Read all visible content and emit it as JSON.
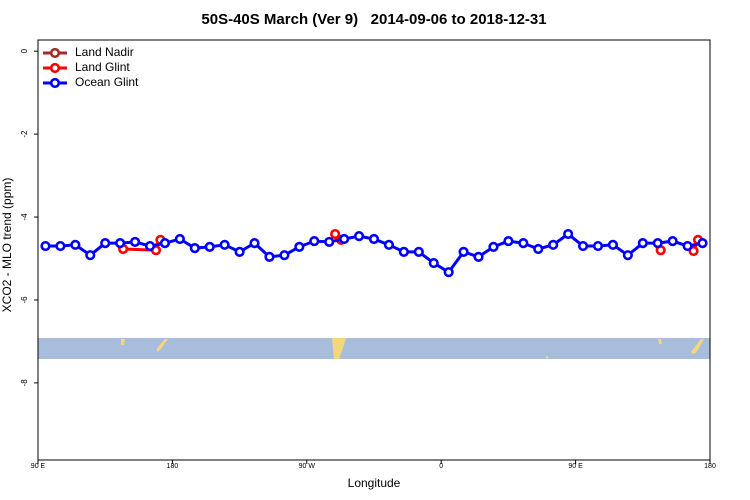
{
  "chart_data": {
    "type": "line",
    "title": "50S-40S March (Ver 9)   2014-09-06 to 2018-12-31",
    "x_label": "Longitude",
    "y_label": "XCO2 - MLO trend (ppm)",
    "xlim": [
      90,
      540
    ],
    "ylim": [
      -9.86,
      0.27
    ],
    "xticks": [
      {
        "value": 90,
        "label": "90 E"
      },
      {
        "value": 180,
        "label": "180"
      },
      {
        "value": 270,
        "label": "90 W"
      },
      {
        "value": 360,
        "label": "0"
      },
      {
        "value": 450,
        "label": "90 E"
      },
      {
        "value": 540,
        "label": "180"
      }
    ],
    "yticks": [
      0,
      -2,
      -4,
      -6,
      -8
    ],
    "legend": "top-left",
    "series": [
      {
        "name": "Land Nadir",
        "color": "#a52a2a",
        "x": [],
        "values": []
      },
      {
        "name": "Land Glint",
        "color": "#ff0000",
        "x": [
          147,
          169,
          172,
          null,
          289,
          293,
          null,
          507,
          null,
          529,
          532
        ],
        "values": [
          -4.77,
          -4.8,
          -4.55,
          null,
          -4.41,
          -4.55,
          null,
          -4.8,
          null,
          -4.82,
          -4.55
        ]
      },
      {
        "name": "Ocean Glint",
        "color": "#0000ff",
        "x": [
          95,
          105,
          115,
          125,
          135,
          145,
          155,
          165,
          175,
          185,
          195,
          205,
          215,
          225,
          235,
          245,
          255,
          265,
          275,
          285,
          295,
          305,
          315,
          325,
          335,
          345,
          355,
          365,
          375,
          385,
          395,
          405,
          415,
          425,
          435,
          445,
          455,
          465,
          475,
          485,
          495,
          505,
          515,
          525,
          535
        ],
        "values": [
          -4.7,
          -4.7,
          -4.67,
          -4.92,
          -4.63,
          -4.63,
          -4.6,
          -4.7,
          -4.63,
          -4.53,
          -4.75,
          -4.72,
          -4.67,
          -4.84,
          -4.63,
          -4.96,
          -4.92,
          -4.72,
          -4.58,
          -4.6,
          -4.53,
          -4.46,
          -4.53,
          -4.67,
          -4.84,
          -4.84,
          -5.11,
          -5.33,
          -4.84,
          -4.96,
          -4.72,
          -4.58,
          -4.63,
          -4.77,
          -4.67,
          -4.41,
          -4.7,
          -4.7,
          -4.67,
          -4.92,
          -4.63,
          -4.63,
          -4.58,
          -4.7,
          -4.63
        ]
      }
    ]
  }
}
